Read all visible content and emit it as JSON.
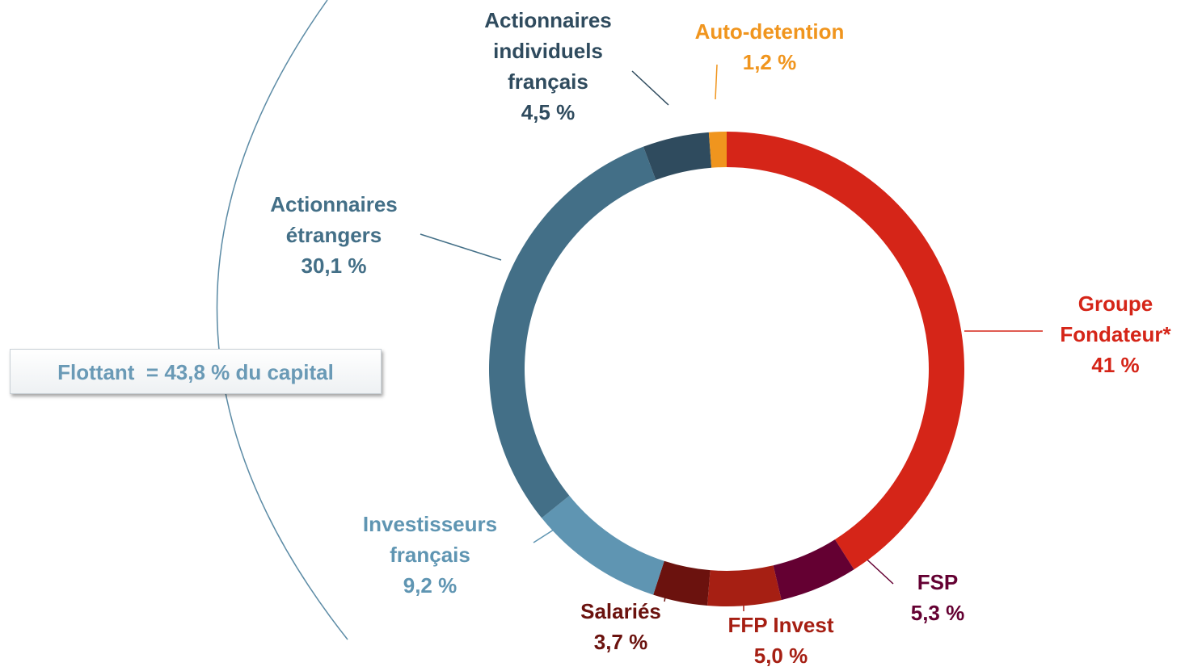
{
  "chart_data": {
    "type": "donut",
    "categories": [
      "Groupe Fondateur*",
      "FSP",
      "FFP Invest",
      "Salariés",
      "Investisseurs français",
      "Actionnaires étrangers",
      "Actionnaires individuels français",
      "Auto-detention"
    ],
    "values": [
      41,
      5.3,
      5.0,
      3.7,
      9.2,
      30.1,
      4.5,
      1.2
    ],
    "value_labels": [
      "41 %",
      "5,3 %",
      "5,0 %",
      "3,7 %",
      "9,2 %",
      "30,1 %",
      "4,5 %",
      "1,2 %"
    ],
    "colors": [
      "#d52518",
      "#640032",
      "#a61f13",
      "#6b120e",
      "#5f95b2",
      "#436f87",
      "#2f4b5e",
      "#f0951e"
    ],
    "annotation": "Flottant  = 43,8 % du capital"
  }
}
